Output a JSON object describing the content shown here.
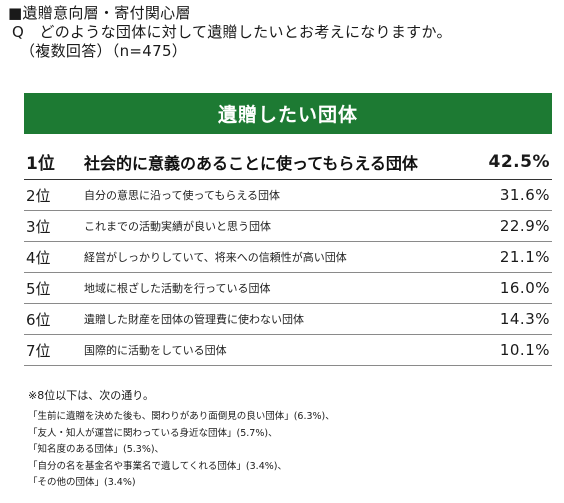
{
  "header": {
    "section_title": "■遺贈意向層・寄付関心層",
    "question": "Q　どのような団体に対して遺贈したいとお考えになりますか。",
    "note": "（複数回答）（n=475）"
  },
  "banner": {
    "title": "遺贈したい団体"
  },
  "ranking": [
    {
      "rank": "1位",
      "label": "社会的に意義のあることに使ってもらえる団体",
      "pct": "42.5%"
    },
    {
      "rank": "2位",
      "label": "自分の意思に沿って使ってもらえる団体",
      "pct": "31.6%"
    },
    {
      "rank": "3位",
      "label": "これまでの活動実績が良いと思う団体",
      "pct": "22.9%"
    },
    {
      "rank": "4位",
      "label": "経営がしっかりしていて、将来への信頼性が高い団体",
      "pct": "21.1%"
    },
    {
      "rank": "5位",
      "label": "地域に根ざした活動を行っている団体",
      "pct": "16.0%"
    },
    {
      "rank": "6位",
      "label": "遺贈した財産を団体の管理費に使わない団体",
      "pct": "14.3%"
    },
    {
      "rank": "7位",
      "label": "国際的に活動をしている団体",
      "pct": "10.1%"
    }
  ],
  "notes": {
    "lead": "※8位以下は、次の通り。",
    "items": [
      "「生前に遺贈を決めた後も、関わりがあり面倒見の良い団体」(6.3%)、",
      "「友人・知人が運営に関わっている身近な団体」(5.7%)、",
      "「知名度のある団体」(5.3%)、",
      "「自分の名を基金名や事業名で遺してくれる団体」(3.4%)、",
      "「その他の団体」(3.4%)"
    ]
  },
  "colors": {
    "banner_bg": "#1d7a33",
    "banner_text": "#ffffff"
  }
}
